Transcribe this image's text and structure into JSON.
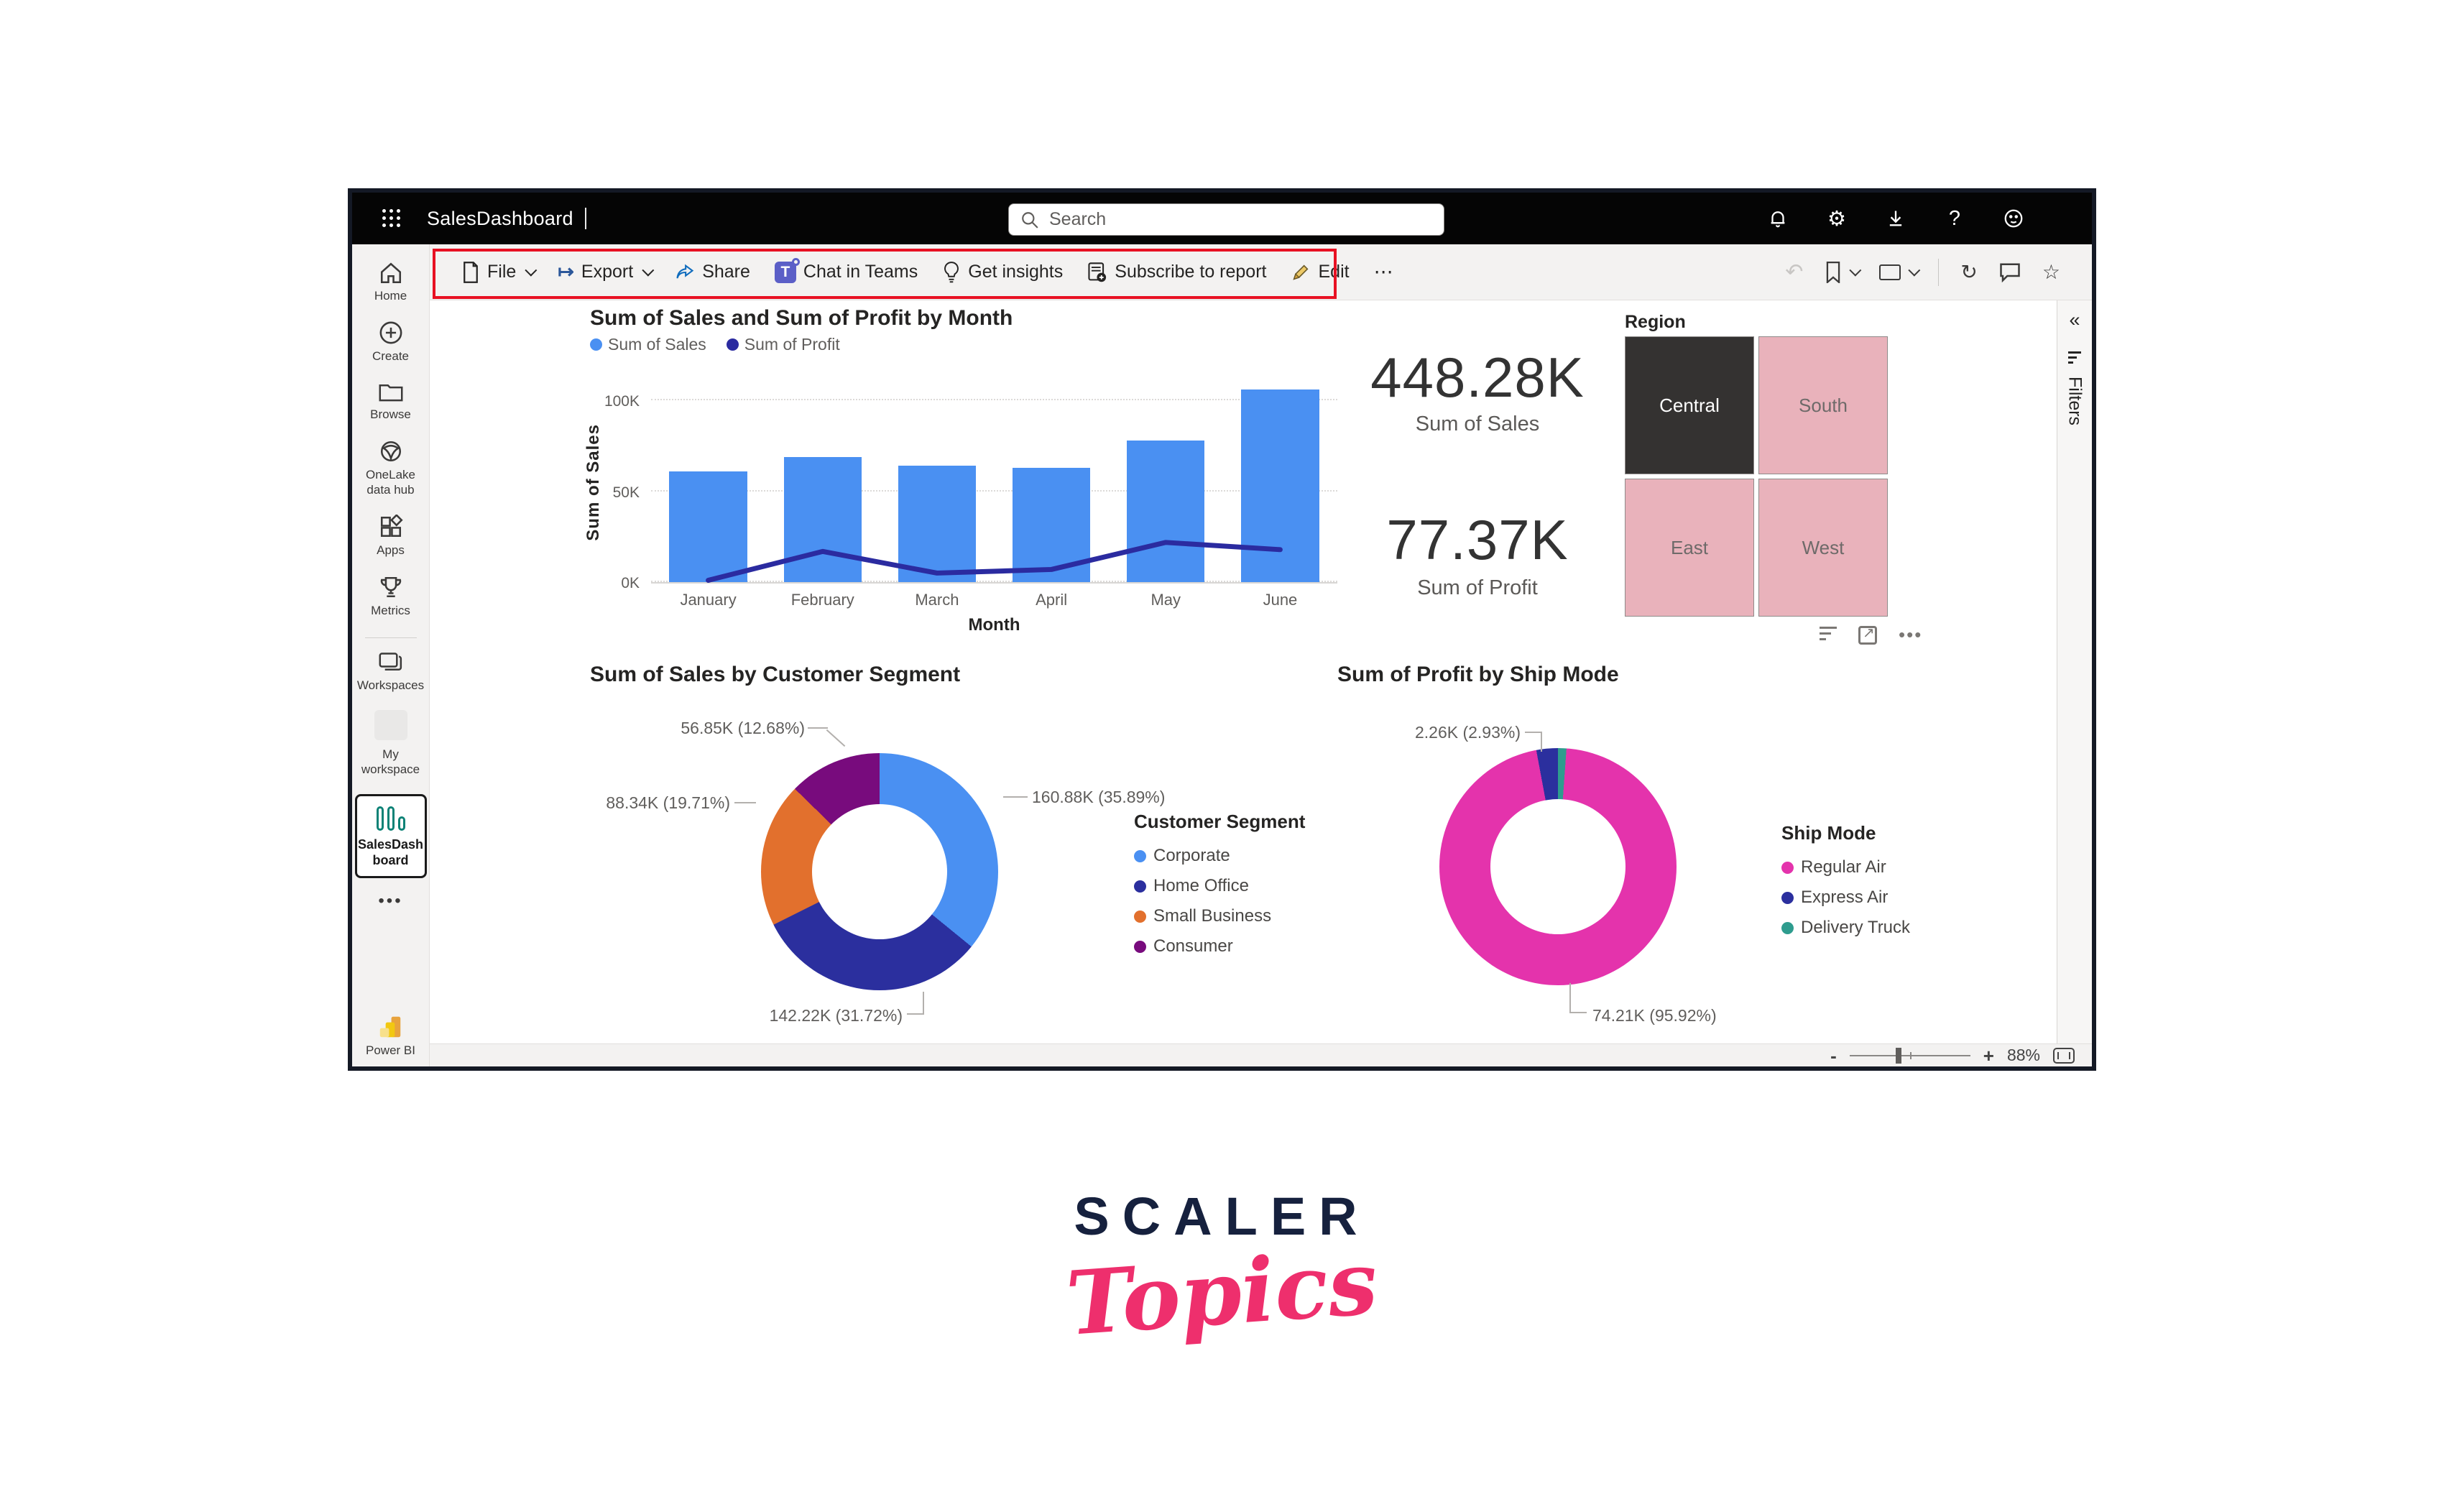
{
  "topbar": {
    "title": "SalesDashboard",
    "search_placeholder": "Search"
  },
  "toolbar": {
    "file": "File",
    "export": "Export",
    "share": "Share",
    "chat": "Chat in Teams",
    "insights": "Get insights",
    "subscribe": "Subscribe to report",
    "edit": "Edit",
    "more": "⋯",
    "teams_letter": "T",
    "export_glyph": "↦",
    "undo_glyph": "↶",
    "refresh_glyph": "↻",
    "star_glyph": "☆"
  },
  "sidebar": {
    "items": [
      {
        "label": "Home"
      },
      {
        "label": "Create"
      },
      {
        "label": "Browse"
      },
      {
        "label": "OneLake data hub"
      },
      {
        "label": "Apps"
      },
      {
        "label": "Metrics"
      },
      {
        "label": "Workspaces"
      },
      {
        "label": "My workspace"
      }
    ],
    "selected_item": "SalesDashboard",
    "more": "•••",
    "powerbi": "Power BI"
  },
  "filters_pane": {
    "collapse": "«",
    "label": "Filters"
  },
  "statusbar": {
    "minus": "-",
    "plus": "+",
    "zoom_level": "88%"
  },
  "topbar_icons": [
    "notifications",
    "settings",
    "download",
    "help",
    "feedback"
  ],
  "branding": {
    "line1": "SCALER",
    "line2": "Topics",
    "navy": "#16213e",
    "pink": "#ee2f6d"
  },
  "chart_data": [
    {
      "type": "bar",
      "title": "Sum of Sales and Sum of Profit by Month",
      "categories": [
        "January",
        "February",
        "March",
        "April",
        "May",
        "June"
      ],
      "series": [
        {
          "name": "Sum of Sales",
          "chart": "bar",
          "color": "#4a90f2",
          "values": [
            61000,
            69000,
            64000,
            63000,
            78000,
            106000
          ]
        },
        {
          "name": "Sum of Profit",
          "chart": "line",
          "color": "#2b2ba0",
          "values": [
            1000,
            17000,
            5000,
            7000,
            22000,
            18000
          ]
        }
      ],
      "xlabel": "Month",
      "ylabel": "Sum of Sales",
      "ylim": [
        0,
        110000
      ],
      "yticks": [
        {
          "v": 0,
          "label": "0K"
        },
        {
          "v": 50000,
          "label": "50K"
        },
        {
          "v": 100000,
          "label": "100K"
        }
      ],
      "legend_position": "top",
      "grid": "horizontal dotted"
    },
    {
      "type": "card",
      "value": "448.28K",
      "label": "Sum of Sales"
    },
    {
      "type": "card",
      "value": "77.37K",
      "label": "Sum of Profit"
    },
    {
      "type": "table",
      "title": "Region",
      "cells": [
        {
          "label": "Central",
          "color": "#343231",
          "selected": true
        },
        {
          "label": "South",
          "color": "#e9b2bb",
          "selected": false
        },
        {
          "label": "East",
          "color": "#e9b2bb",
          "selected": false
        },
        {
          "label": "West",
          "color": "#e9b2bb",
          "selected": false
        }
      ]
    },
    {
      "type": "pie",
      "title": "Sum of Sales by Customer Segment",
      "legend_title": "Customer Segment",
      "legend_position": "right",
      "slices": [
        {
          "name": "Corporate",
          "value": 160880,
          "pct": 35.89,
          "label": "160.88K (35.89%)",
          "color": "#4a90f2"
        },
        {
          "name": "Home Office",
          "value": 142220,
          "pct": 31.72,
          "label": "142.22K (31.72%)",
          "color": "#2b2f9e"
        },
        {
          "name": "Small Business",
          "value": 88340,
          "pct": 19.71,
          "label": "88.34K (19.71%)",
          "color": "#e2702d"
        },
        {
          "name": "Consumer",
          "value": 56850,
          "pct": 12.68,
          "label": "56.85K (12.68%)",
          "color": "#780b7d"
        }
      ],
      "draw_order": [
        0,
        1,
        2,
        3
      ]
    },
    {
      "type": "pie",
      "title": "Sum of Profit by Ship Mode",
      "legend_title": "Ship Mode",
      "legend_position": "right",
      "slices": [
        {
          "name": "Regular Air",
          "value": 74210,
          "pct": 95.92,
          "label": "74.21K (95.92%)",
          "color": "#e433ac"
        },
        {
          "name": "Express Air",
          "value": 2260,
          "pct": 2.93,
          "label": "2.26K (2.93%)",
          "color": "#2b2f9e"
        },
        {
          "name": "Delivery Truck",
          "value": 890,
          "pct": 1.15,
          "label": "",
          "color": "#2e9c8e"
        }
      ],
      "draw_order": [
        2,
        0,
        1
      ]
    }
  ]
}
